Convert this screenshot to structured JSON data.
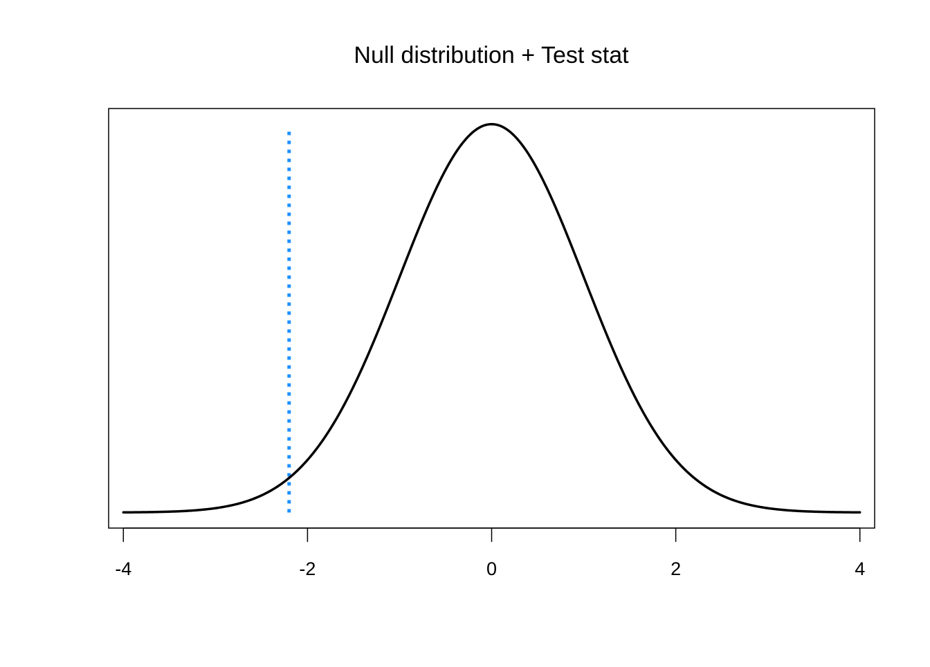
{
  "chart_data": {
    "type": "line",
    "title": "Null distribution + Test stat",
    "xlabel": "",
    "ylabel": "",
    "xlim": [
      -4.16,
      4.16
    ],
    "ylim": [
      -0.016,
      0.415
    ],
    "x_ticks": [
      "-4",
      "-2",
      "0",
      "2",
      "4"
    ],
    "x_tick_values": [
      -4,
      -2,
      0,
      2,
      4
    ],
    "grid": false,
    "series": [
      {
        "distribution": "normal",
        "mean": 0,
        "sd": 1,
        "x_range": [
          -4,
          4
        ],
        "x": [
          -4,
          -3.5,
          -3,
          -2.5,
          -2.2,
          -2,
          -1.5,
          -1,
          -0.5,
          0,
          0.5,
          1,
          1.5,
          2,
          2.5,
          3,
          3.5,
          4
        ],
        "y": [
          0.0001,
          0.0009,
          0.0044,
          0.0175,
          0.0355,
          0.054,
          0.1295,
          0.242,
          0.3521,
          0.3989,
          0.3521,
          0.242,
          0.1295,
          0.054,
          0.0175,
          0.0044,
          0.0009,
          0.0001
        ],
        "color": "#000000",
        "style": "solid"
      }
    ],
    "reference_lines": [
      {
        "orientation": "vertical",
        "x": -2.2,
        "color": "#1E90FF",
        "style": "dotted"
      }
    ]
  }
}
